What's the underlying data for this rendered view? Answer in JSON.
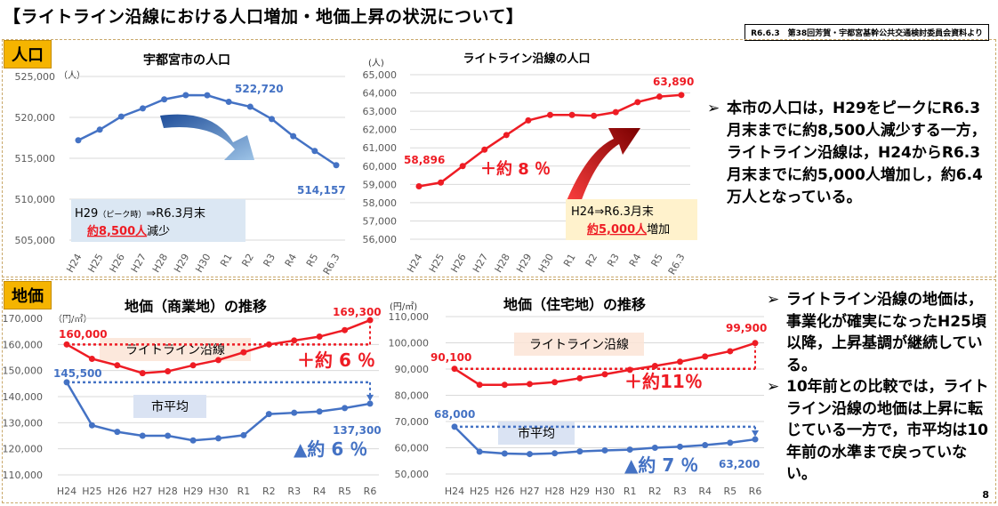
{
  "title": "【ライトライン沿線における人口増加・地価上昇の状況について】",
  "source": "R6.6.3　第38回芳賀・宇都宮基幹公共交通検討委員会資料より",
  "page_number": "8",
  "sections": {
    "population": "人口",
    "land_price": "地価"
  },
  "bullets_top": [
    {
      "mark": "➢",
      "text": "本市の人口は，H29をピークにR6.3月末までに約8,500人減少する一方，ライトライン沿線は，H24からR6.3月末までに約5,000人増加し，約6.4万人となっている。"
    }
  ],
  "bullets_bottom": [
    {
      "mark": "➢",
      "text": "ライトライン沿線の地価は，事業化が確実になったH25頃以降，上昇基調が継続している。"
    },
    {
      "mark": "➢",
      "text": "10年前との比較では，ライトライン沿線の地価は上昇に転じている一方で，市平均は10年前の水準まで戻っていない。"
    }
  ],
  "colors": {
    "blue": "#4472c4",
    "red": "#ee1c24",
    "orange_tag": "#f5b400"
  },
  "chart_data": [
    {
      "id": "city_pop",
      "type": "line",
      "title": "宇都宮市の人口",
      "unit": "（人）",
      "categories": [
        "H24",
        "H25",
        "H26",
        "H27",
        "H28",
        "H29",
        "H30",
        "R1",
        "R2",
        "R3",
        "R4",
        "R5",
        "R6.3"
      ],
      "ylim": [
        505000,
        525000
      ],
      "yticks": [
        "505,000",
        "510,000",
        "515,000",
        "520,000",
        "525,000"
      ],
      "series": [
        {
          "name": "",
          "values": [
            517200,
            518500,
            520100,
            521100,
            522200,
            522720,
            522700,
            521900,
            521300,
            519800,
            517700,
            515900,
            514157
          ]
        }
      ],
      "labels": {
        "peak": "522,720",
        "end": "514,157"
      },
      "callout": {
        "line1": "H29",
        "line1_small": "（ピーク時）",
        "line1_rest": "⇒R6.3月末",
        "line2_em": "約8,500人",
        "line2_rest": "減少"
      }
    },
    {
      "id": "line_pop",
      "type": "line",
      "title": "ライトライン沿線の人口",
      "unit": "(人)",
      "categories": [
        "H24",
        "H25",
        "H26",
        "H27",
        "H28",
        "H29",
        "H30",
        "R1",
        "R2",
        "R3",
        "R4",
        "R5",
        "R6.3"
      ],
      "ylim": [
        56000,
        65000
      ],
      "yticks": [
        "56,000",
        "57,000",
        "58,000",
        "59,000",
        "60,000",
        "61,000",
        "62,000",
        "63,000",
        "64,000",
        "65,000"
      ],
      "series": [
        {
          "name": "",
          "values": [
            58896,
            59100,
            60000,
            60900,
            61700,
            62500,
            62800,
            62800,
            62750,
            62950,
            63500,
            63800,
            63890
          ]
        }
      ],
      "labels": {
        "start": "58,896",
        "end": "63,890",
        "change": "＋約 8 ％"
      },
      "callout": {
        "line1": "H24⇒R6.3月末",
        "line2_em": "約5,000人",
        "line2_rest": "増加"
      }
    },
    {
      "id": "commercial",
      "type": "line",
      "title": "地価（商業地）の推移",
      "unit": "（円/㎡）",
      "categories": [
        "H24",
        "H25",
        "H26",
        "H27",
        "H28",
        "H29",
        "H30",
        "R1",
        "R2",
        "R3",
        "R4",
        "R5",
        "R6"
      ],
      "ylim": [
        110000,
        170000
      ],
      "yticks": [
        "110,000",
        "120,000",
        "130,000",
        "140,000",
        "150,000",
        "160,000",
        "170,000"
      ],
      "series": [
        {
          "name": "ライトライン沿線",
          "values": [
            160000,
            154500,
            152000,
            149000,
            149700,
            152000,
            154000,
            157000,
            160000,
            161500,
            163000,
            165500,
            169300
          ]
        },
        {
          "name": "市平均",
          "values": [
            145500,
            129000,
            126500,
            125000,
            125000,
            123200,
            124000,
            125200,
            133300,
            133800,
            134300,
            135600,
            137300
          ]
        }
      ],
      "labels": {
        "red_start": "160,000",
        "red_end": "169,300",
        "blue_start": "145,500",
        "blue_end": "137,300",
        "red_change": "＋約 6 ％",
        "blue_change": "▲約 6 ％"
      }
    },
    {
      "id": "residential",
      "type": "line",
      "title": "地価（住宅地）の推移",
      "unit": "(円/㎡)",
      "categories": [
        "H24",
        "H25",
        "H26",
        "H27",
        "H28",
        "H29",
        "H30",
        "R1",
        "R2",
        "R3",
        "R4",
        "R5",
        "R6"
      ],
      "ylim": [
        50000,
        110000
      ],
      "yticks": [
        "50,000",
        "60,000",
        "70,000",
        "80,000",
        "90,000",
        "100,000",
        "110,000"
      ],
      "series": [
        {
          "name": "ライトライン沿線",
          "values": [
            90100,
            84000,
            84000,
            84300,
            85000,
            86500,
            88000,
            89700,
            91200,
            92800,
            94800,
            96800,
            99900
          ]
        },
        {
          "name": "市平均",
          "values": [
            68000,
            58500,
            57800,
            57600,
            57900,
            58600,
            59000,
            59300,
            60000,
            60400,
            61000,
            61900,
            63200
          ]
        }
      ],
      "labels": {
        "red_start": "90,100",
        "red_end": "99,900",
        "blue_start": "68,000",
        "blue_end": "63,200",
        "red_change": "＋約11％",
        "blue_change": "▲約 7 ％"
      }
    }
  ]
}
